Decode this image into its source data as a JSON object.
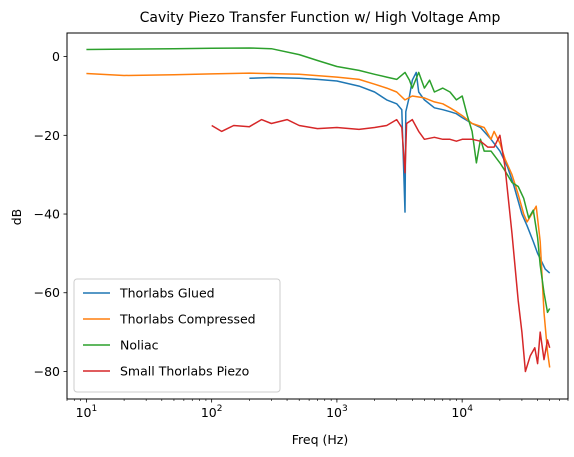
{
  "chart_data": {
    "type": "line",
    "title": "Cavity Piezo Transfer Function w/ High Voltage Amp",
    "xlabel": "Freq (Hz)",
    "ylabel": "dB",
    "xscale": "log",
    "xlim": [
      7,
      70000
    ],
    "ylim": [
      -87,
      6
    ],
    "xticks": [
      {
        "value": 10,
        "base": "10",
        "exp": "1"
      },
      {
        "value": 100,
        "base": "10",
        "exp": "2"
      },
      {
        "value": 1000,
        "base": "10",
        "exp": "3"
      },
      {
        "value": 10000,
        "base": "10",
        "exp": "4"
      }
    ],
    "yticks": [
      0,
      -20,
      -40,
      -60,
      -80
    ],
    "yticks_display": [
      "0",
      "−20",
      "−40",
      "−60",
      "−80"
    ],
    "grid": false,
    "legend_position": "lower-left",
    "series": [
      {
        "name": "Thorlabs Glued",
        "color": "#1f77b4",
        "points": [
          [
            200,
            -5.5
          ],
          [
            300,
            -5.3
          ],
          [
            500,
            -5.5
          ],
          [
            700,
            -5.8
          ],
          [
            1000,
            -6.2
          ],
          [
            1500,
            -7.5
          ],
          [
            2000,
            -9
          ],
          [
            2500,
            -11
          ],
          [
            3000,
            -12
          ],
          [
            3300,
            -13.5
          ],
          [
            3500,
            -39.5
          ],
          [
            3550,
            -14
          ],
          [
            3800,
            -10
          ],
          [
            4000,
            -6
          ],
          [
            4300,
            -4
          ],
          [
            4500,
            -9
          ],
          [
            5000,
            -11
          ],
          [
            6000,
            -13
          ],
          [
            7000,
            -13.5
          ],
          [
            8000,
            -14
          ],
          [
            9000,
            -14.5
          ],
          [
            10000,
            -15.5
          ],
          [
            12000,
            -17
          ],
          [
            14000,
            -18
          ],
          [
            17000,
            -21
          ],
          [
            20000,
            -24
          ],
          [
            23000,
            -28
          ],
          [
            26000,
            -33
          ],
          [
            30000,
            -40
          ],
          [
            33000,
            -43
          ],
          [
            37000,
            -47
          ],
          [
            40000,
            -50
          ],
          [
            43000,
            -52
          ],
          [
            46000,
            -54
          ],
          [
            50000,
            -55
          ]
        ]
      },
      {
        "name": "Thorlabs Compressed",
        "color": "#ff7f0e",
        "points": [
          [
            10,
            -4.3
          ],
          [
            20,
            -4.8
          ],
          [
            50,
            -4.6
          ],
          [
            100,
            -4.4
          ],
          [
            200,
            -4.2
          ],
          [
            500,
            -4.5
          ],
          [
            1000,
            -5.2
          ],
          [
            1500,
            -5.8
          ],
          [
            2000,
            -7
          ],
          [
            2500,
            -8
          ],
          [
            3000,
            -9
          ],
          [
            3500,
            -11
          ],
          [
            4000,
            -10
          ],
          [
            5000,
            -10.5
          ],
          [
            6000,
            -11.5
          ],
          [
            7000,
            -12
          ],
          [
            8000,
            -13
          ],
          [
            9000,
            -14
          ],
          [
            10000,
            -15
          ],
          [
            12000,
            -17
          ],
          [
            15000,
            -18
          ],
          [
            17000,
            -21
          ],
          [
            18000,
            -19
          ],
          [
            20000,
            -22
          ],
          [
            22000,
            -26
          ],
          [
            25000,
            -30
          ],
          [
            28000,
            -35
          ],
          [
            31000,
            -40
          ],
          [
            33000,
            -42
          ],
          [
            36000,
            -40
          ],
          [
            39000,
            -38
          ],
          [
            42000,
            -47
          ],
          [
            45000,
            -65
          ],
          [
            48000,
            -75
          ],
          [
            50000,
            -79
          ]
        ]
      },
      {
        "name": "Noliac",
        "color": "#2ca02c",
        "points": [
          [
            10,
            1.8
          ],
          [
            20,
            1.9
          ],
          [
            50,
            2
          ],
          [
            100,
            2.1
          ],
          [
            200,
            2.2
          ],
          [
            300,
            2.0
          ],
          [
            500,
            0.5
          ],
          [
            700,
            -1
          ],
          [
            1000,
            -2.5
          ],
          [
            1500,
            -3.5
          ],
          [
            2000,
            -4.5
          ],
          [
            2500,
            -5.2
          ],
          [
            3000,
            -5.8
          ],
          [
            3500,
            -4.0
          ],
          [
            3800,
            -6
          ],
          [
            4000,
            -8
          ],
          [
            4500,
            -4
          ],
          [
            5000,
            -8
          ],
          [
            5500,
            -6
          ],
          [
            6000,
            -9
          ],
          [
            7000,
            -8
          ],
          [
            8000,
            -9
          ],
          [
            9000,
            -11
          ],
          [
            10000,
            -10
          ],
          [
            11000,
            -15
          ],
          [
            12000,
            -19
          ],
          [
            13000,
            -27
          ],
          [
            14000,
            -21
          ],
          [
            15000,
            -24
          ],
          [
            17000,
            -24
          ],
          [
            20000,
            -27
          ],
          [
            22000,
            -29
          ],
          [
            25000,
            -32
          ],
          [
            28000,
            -33
          ],
          [
            31000,
            -36
          ],
          [
            34000,
            -41
          ],
          [
            37000,
            -39
          ],
          [
            40000,
            -46
          ],
          [
            42000,
            -53
          ],
          [
            45000,
            -60
          ],
          [
            48000,
            -65
          ],
          [
            50000,
            -64
          ]
        ]
      },
      {
        "name": "Small Thorlabs Piezo",
        "color": "#d62728",
        "points": [
          [
            100,
            -17.5
          ],
          [
            120,
            -19
          ],
          [
            150,
            -17.5
          ],
          [
            200,
            -17.8
          ],
          [
            250,
            -16
          ],
          [
            300,
            -17
          ],
          [
            400,
            -16
          ],
          [
            500,
            -17.5
          ],
          [
            700,
            -18.3
          ],
          [
            1000,
            -18
          ],
          [
            1500,
            -18.5
          ],
          [
            2000,
            -18
          ],
          [
            2500,
            -17.5
          ],
          [
            3000,
            -16
          ],
          [
            3300,
            -18
          ],
          [
            3500,
            -29.5
          ],
          [
            3600,
            -17
          ],
          [
            4000,
            -16
          ],
          [
            4500,
            -19
          ],
          [
            5000,
            -21
          ],
          [
            6000,
            -20.5
          ],
          [
            7000,
            -21
          ],
          [
            8000,
            -21
          ],
          [
            9000,
            -21.5
          ],
          [
            10000,
            -21
          ],
          [
            12000,
            -21
          ],
          [
            14000,
            -21.5
          ],
          [
            16000,
            -23
          ],
          [
            18000,
            -23
          ],
          [
            20000,
            -20
          ],
          [
            22000,
            -28
          ],
          [
            25000,
            -45
          ],
          [
            28000,
            -62
          ],
          [
            30000,
            -70
          ],
          [
            32000,
            -80
          ],
          [
            35000,
            -76
          ],
          [
            38000,
            -74
          ],
          [
            40000,
            -78
          ],
          [
            42000,
            -70
          ],
          [
            45000,
            -77
          ],
          [
            48000,
            -72
          ],
          [
            50000,
            -74
          ]
        ]
      }
    ]
  }
}
